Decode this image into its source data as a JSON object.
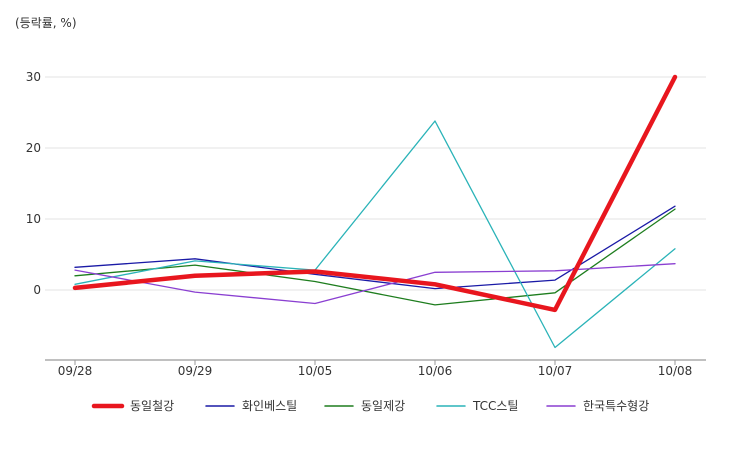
{
  "chart_data": {
    "type": "line",
    "unit_label": "(등락률, %)",
    "categories": [
      "09/28",
      "09/29",
      "10/05",
      "10/06",
      "10/07",
      "10/08"
    ],
    "ylim": [
      -10,
      32
    ],
    "yticks": [
      0,
      10,
      20,
      30
    ],
    "grid": true,
    "legend_position": "bottom",
    "series": [
      {
        "name": "동일철강",
        "color": "#e8161e",
        "emphasis": true,
        "values": [
          0.3,
          2.0,
          2.6,
          0.8,
          -2.8,
          30.0
        ]
      },
      {
        "name": "화인베스틸",
        "color": "#1a1aa6",
        "emphasis": false,
        "values": [
          3.2,
          4.4,
          2.2,
          0.2,
          1.4,
          11.8
        ]
      },
      {
        "name": "동일제강",
        "color": "#1e7d1e",
        "emphasis": false,
        "values": [
          2.0,
          3.5,
          1.2,
          -2.1,
          -0.4,
          11.4
        ]
      },
      {
        "name": "TCC스틸",
        "color": "#2ab3b8",
        "emphasis": false,
        "values": [
          0.8,
          4.1,
          2.8,
          23.8,
          -8.1,
          5.8
        ]
      },
      {
        "name": "한국특수형강",
        "color": "#8a3fd1",
        "emphasis": false,
        "values": [
          2.8,
          -0.3,
          -1.9,
          2.5,
          2.7,
          3.7
        ]
      }
    ]
  }
}
